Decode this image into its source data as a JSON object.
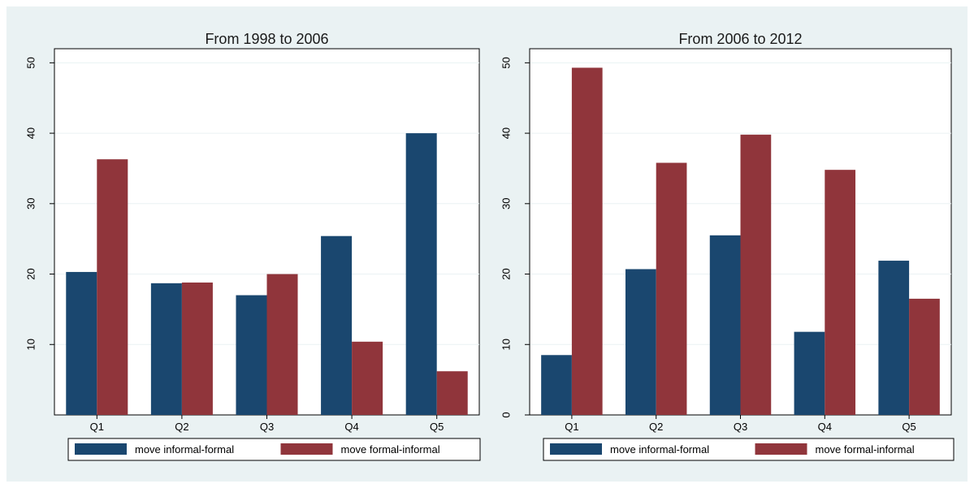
{
  "chart_data": [
    {
      "type": "bar",
      "title": "From 1998 to 2006",
      "xlabel": "",
      "ylabel": "",
      "categories": [
        "Q1",
        "Q2",
        "Q3",
        "Q4",
        "Q5"
      ],
      "ylim": [
        0,
        52
      ],
      "yticks": [
        10,
        20,
        30,
        40,
        50
      ],
      "ytick_labels": [
        "10",
        "20",
        "30",
        "40",
        "50"
      ],
      "grid": true,
      "legend": "bottom",
      "series": [
        {
          "name": "move informal-formal",
          "color": "#1a476f",
          "values": [
            20.3,
            18.7,
            17.0,
            25.4,
            40.0
          ]
        },
        {
          "name": "move formal-informal",
          "color": "#90353b",
          "values": [
            36.3,
            18.8,
            20.0,
            10.4,
            6.2
          ]
        }
      ]
    },
    {
      "type": "bar",
      "title": "From 2006 to 2012",
      "xlabel": "",
      "ylabel": "",
      "categories": [
        "Q1",
        "Q2",
        "Q3",
        "Q4",
        "Q5"
      ],
      "ylim": [
        0,
        52
      ],
      "yticks": [
        0,
        10,
        20,
        30,
        40,
        50
      ],
      "ytick_labels": [
        "0",
        "10",
        "20",
        "30",
        "40",
        "50"
      ],
      "grid": true,
      "legend": "bottom",
      "series": [
        {
          "name": "move informal-formal",
          "color": "#1a476f",
          "values": [
            8.5,
            20.7,
            25.5,
            11.8,
            21.9
          ]
        },
        {
          "name": "move formal-informal",
          "color": "#90353b",
          "values": [
            49.3,
            35.8,
            39.8,
            34.8,
            16.5
          ]
        }
      ]
    }
  ]
}
